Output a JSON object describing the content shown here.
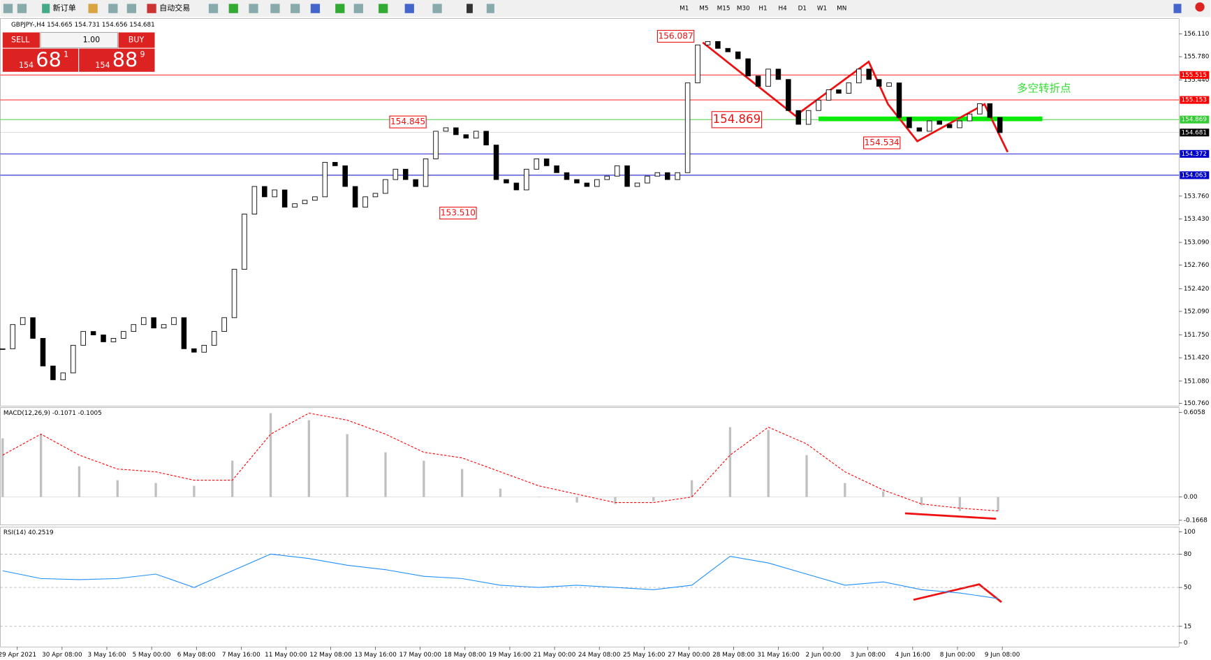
{
  "toolbar": {
    "new_order": "新订单",
    "auto_trading": "自动交易",
    "timeframes": [
      "M1",
      "M5",
      "M15",
      "M30",
      "H1",
      "H4",
      "D1",
      "W1",
      "MN"
    ]
  },
  "trade_panel": {
    "sell": "SELL",
    "buy": "BUY",
    "lot": "1.00",
    "sell_price": {
      "prefix": "154",
      "big": "68",
      "sup": "1"
    },
    "buy_price": {
      "prefix": "154",
      "big": "88",
      "sup": "9"
    }
  },
  "chart_data": [
    {
      "type": "candlestick",
      "title": "GBPJPY-,H4  154.665 154.731 154.656 154.681",
      "values": [
        151.55,
        151.9,
        152.0,
        151.7,
        151.3,
        151.1,
        151.2,
        151.6,
        151.8,
        151.75,
        151.65,
        151.7,
        151.8,
        151.9,
        152.0,
        151.85,
        151.9,
        152.0,
        151.55,
        151.5,
        151.6,
        151.8,
        152.0,
        152.7,
        153.5,
        153.9,
        153.75,
        153.85,
        153.6,
        153.65,
        153.7,
        153.75,
        154.25,
        154.2,
        153.9,
        153.6,
        153.75,
        153.8,
        154.0,
        154.15,
        154.0,
        153.9,
        154.3,
        154.7,
        154.75,
        154.65,
        154.6,
        154.7,
        154.5,
        154.0,
        153.95,
        153.85,
        154.15,
        154.3,
        154.2,
        154.1,
        154.0,
        153.95,
        153.9,
        154.0,
        154.05,
        154.2,
        153.9,
        153.95,
        154.05,
        154.1,
        154.0,
        154.1,
        155.4,
        155.95,
        156.0,
        155.9,
        155.85,
        155.75,
        155.5,
        155.35,
        155.6,
        155.45,
        155.0,
        154.8,
        155.0,
        155.15,
        155.3,
        155.25,
        155.4,
        155.6,
        155.45,
        155.35,
        155.4,
        154.9,
        154.75,
        154.7,
        154.85,
        154.8,
        154.75,
        154.85,
        154.95,
        155.1,
        154.9,
        154.68
      ],
      "ylim": [
        150.72,
        156.31
      ],
      "yticks": [
        {
          "value": 156.11,
          "label": "156.110"
        },
        {
          "value": 155.78,
          "label": "155.780"
        },
        {
          "value": 155.44,
          "label": "155.440"
        },
        {
          "value": 153.76,
          "label": "153.760"
        },
        {
          "value": 153.43,
          "label": "153.430"
        },
        {
          "value": 153.09,
          "label": "153.090"
        },
        {
          "value": 152.76,
          "label": "152.760"
        },
        {
          "value": 152.42,
          "label": "152.420"
        },
        {
          "value": 152.09,
          "label": "152.090"
        },
        {
          "value": 151.75,
          "label": "151.750"
        },
        {
          "value": 151.42,
          "label": "151.420"
        },
        {
          "value": 151.08,
          "label": "151.080"
        },
        {
          "value": 150.76,
          "label": "150.760"
        }
      ],
      "levels": [
        {
          "value": 155.515,
          "color": "#ff0000"
        },
        {
          "value": 155.153,
          "color": "#ff0000"
        },
        {
          "value": 154.869,
          "color": "#33cc33"
        },
        {
          "value": 154.681,
          "color": "#000000"
        },
        {
          "value": 154.372,
          "color": "#0000cc"
        },
        {
          "value": 154.063,
          "color": "#0000cc"
        }
      ],
      "annotations": [
        "156.087",
        "154.845",
        "153.510",
        "154.869",
        "154.534",
        "多空转折点"
      ],
      "xlabels": [
        "29 Apr 2021",
        "30 Apr 08:00",
        "3 May 16:00",
        "5 May 00:00",
        "6 May 08:00",
        "7 May 16:00",
        "11 May 00:00",
        "12 May 08:00",
        "13 May 16:00",
        "17 May 00:00",
        "18 May 08:00",
        "19 May 16:00",
        "21 May 00:00",
        "24 May 08:00",
        "25 May 16:00",
        "27 May 00:00",
        "28 May 08:00",
        "31 May 16:00",
        "2 Jun 00:00",
        "3 Jun 08:00",
        "4 Jun 16:00",
        "8 Jun 00:00",
        "9 Jun 08:00"
      ]
    },
    {
      "type": "macd",
      "title": "MACD(12,26,9) -0.1071 -0.1005",
      "series": [
        {
          "color": "#c0c0c0",
          "values": [
            0.42,
            0.45,
            0.22,
            0.12,
            0.1,
            0.08,
            0.26,
            0.6,
            0.55,
            0.45,
            0.32,
            0.26,
            0.2,
            0.06,
            0.0,
            -0.04,
            -0.05,
            -0.03,
            0.12,
            0.5,
            0.48,
            0.3,
            0.1,
            0.04,
            -0.06,
            -0.1,
            -0.1
          ]
        },
        {
          "color": "#ff0000",
          "values": [
            0.3,
            0.45,
            0.3,
            0.2,
            0.18,
            0.12,
            0.12,
            0.45,
            0.6,
            0.55,
            0.45,
            0.32,
            0.28,
            0.18,
            0.08,
            0.02,
            -0.04,
            -0.04,
            0.0,
            0.3,
            0.5,
            0.38,
            0.18,
            0.05,
            -0.05,
            -0.08,
            -0.1
          ]
        }
      ],
      "ylim": [
        -0.2,
        0.64
      ],
      "yticks": [
        0.6058,
        {
          "value": 0,
          "label": "0.00"
        },
        -0.1668
      ]
    },
    {
      "type": "line",
      "title": "RSI(14) 40.2519",
      "color": "#1e90ff",
      "values": [
        65,
        58,
        57,
        58,
        62,
        50,
        65,
        80,
        76,
        70,
        66,
        60,
        58,
        52,
        50,
        52,
        50,
        48,
        52,
        78,
        72,
        62,
        52,
        55,
        48,
        45,
        40
      ],
      "ylim": [
        0,
        100
      ],
      "yticks": [
        100,
        80,
        50,
        15,
        0
      ]
    }
  ]
}
